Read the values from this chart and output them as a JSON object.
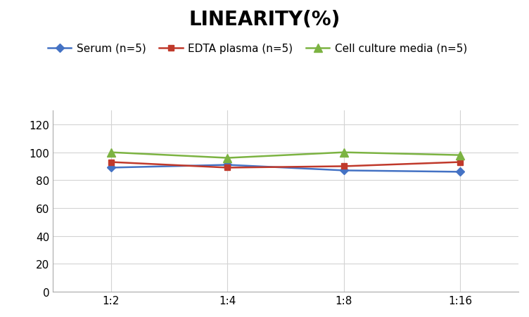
{
  "title": "LINEARITY(%)",
  "x_labels": [
    "1:2",
    "1:4",
    "1:8",
    "1:16"
  ],
  "x_positions": [
    0,
    1,
    2,
    3
  ],
  "series": [
    {
      "label": "Serum (n=5)",
      "values": [
        89,
        91,
        87,
        86
      ],
      "color": "#4472C4",
      "marker": "D",
      "linewidth": 1.8,
      "markersize": 6
    },
    {
      "label": "EDTA plasma (n=5)",
      "values": [
        93,
        89,
        90,
        93
      ],
      "color": "#C0392B",
      "marker": "s",
      "linewidth": 1.8,
      "markersize": 6
    },
    {
      "label": "Cell culture media (n=5)",
      "values": [
        100,
        96,
        100,
        98
      ],
      "color": "#7CB342",
      "marker": "^",
      "linewidth": 1.8,
      "markersize": 8
    }
  ],
  "ylim": [
    0,
    130
  ],
  "yticks": [
    0,
    20,
    40,
    60,
    80,
    100,
    120
  ],
  "background_color": "#ffffff",
  "grid_color": "#d3d3d3",
  "title_fontsize": 20,
  "legend_fontsize": 11,
  "tick_fontsize": 11
}
